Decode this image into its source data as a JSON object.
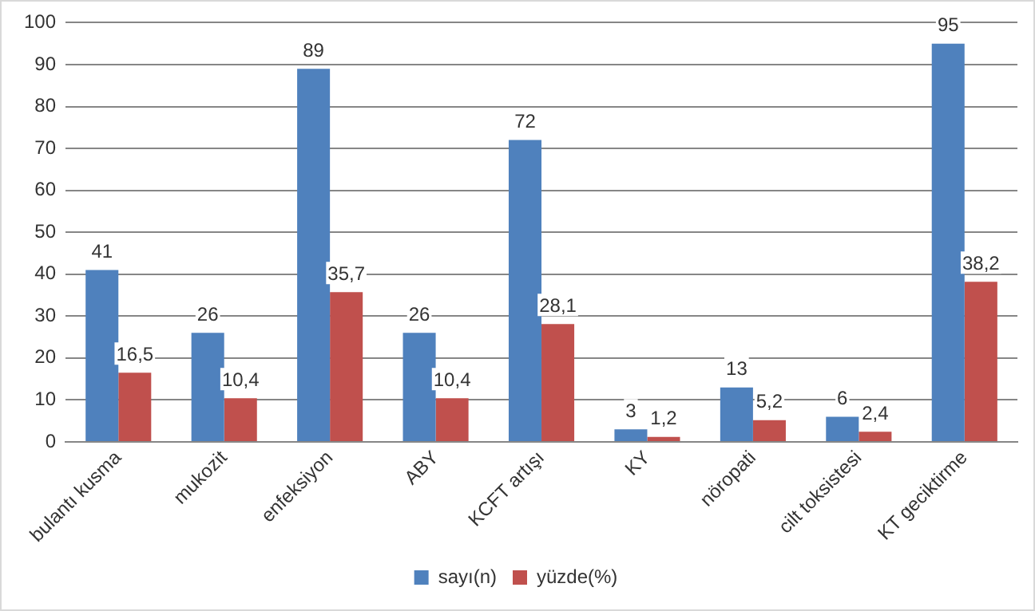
{
  "chart_data": {
    "type": "bar",
    "categories": [
      "bulantı kusma",
      "mukozit",
      "enfeksiyon",
      "ABY",
      "KCFT artışı",
      "KY",
      "nöropati",
      "cilt toksistesi",
      "KT geciktirme"
    ],
    "series": [
      {
        "name": "sayı(n)",
        "color": "#4f81bd",
        "values": [
          41,
          26,
          89,
          26,
          72,
          3,
          13,
          6,
          95
        ],
        "value_labels": [
          "41",
          "26",
          "89",
          "26",
          "72",
          "3",
          "13",
          "6",
          "95"
        ]
      },
      {
        "name": "yüzde(%)",
        "color": "#c0504d",
        "values": [
          16.5,
          10.4,
          35.7,
          10.4,
          28.1,
          1.2,
          5.2,
          2.4,
          38.2
        ],
        "value_labels": [
          "16,5",
          "10,4",
          "35,7",
          "10,4",
          "28,1",
          "1,2",
          "5,2",
          "2,4",
          "38,2"
        ]
      }
    ],
    "ylim": [
      0,
      100
    ],
    "yticks": [
      0,
      10,
      20,
      30,
      40,
      50,
      60,
      70,
      80,
      90,
      100
    ],
    "grid": "y",
    "legend": "bottom"
  }
}
